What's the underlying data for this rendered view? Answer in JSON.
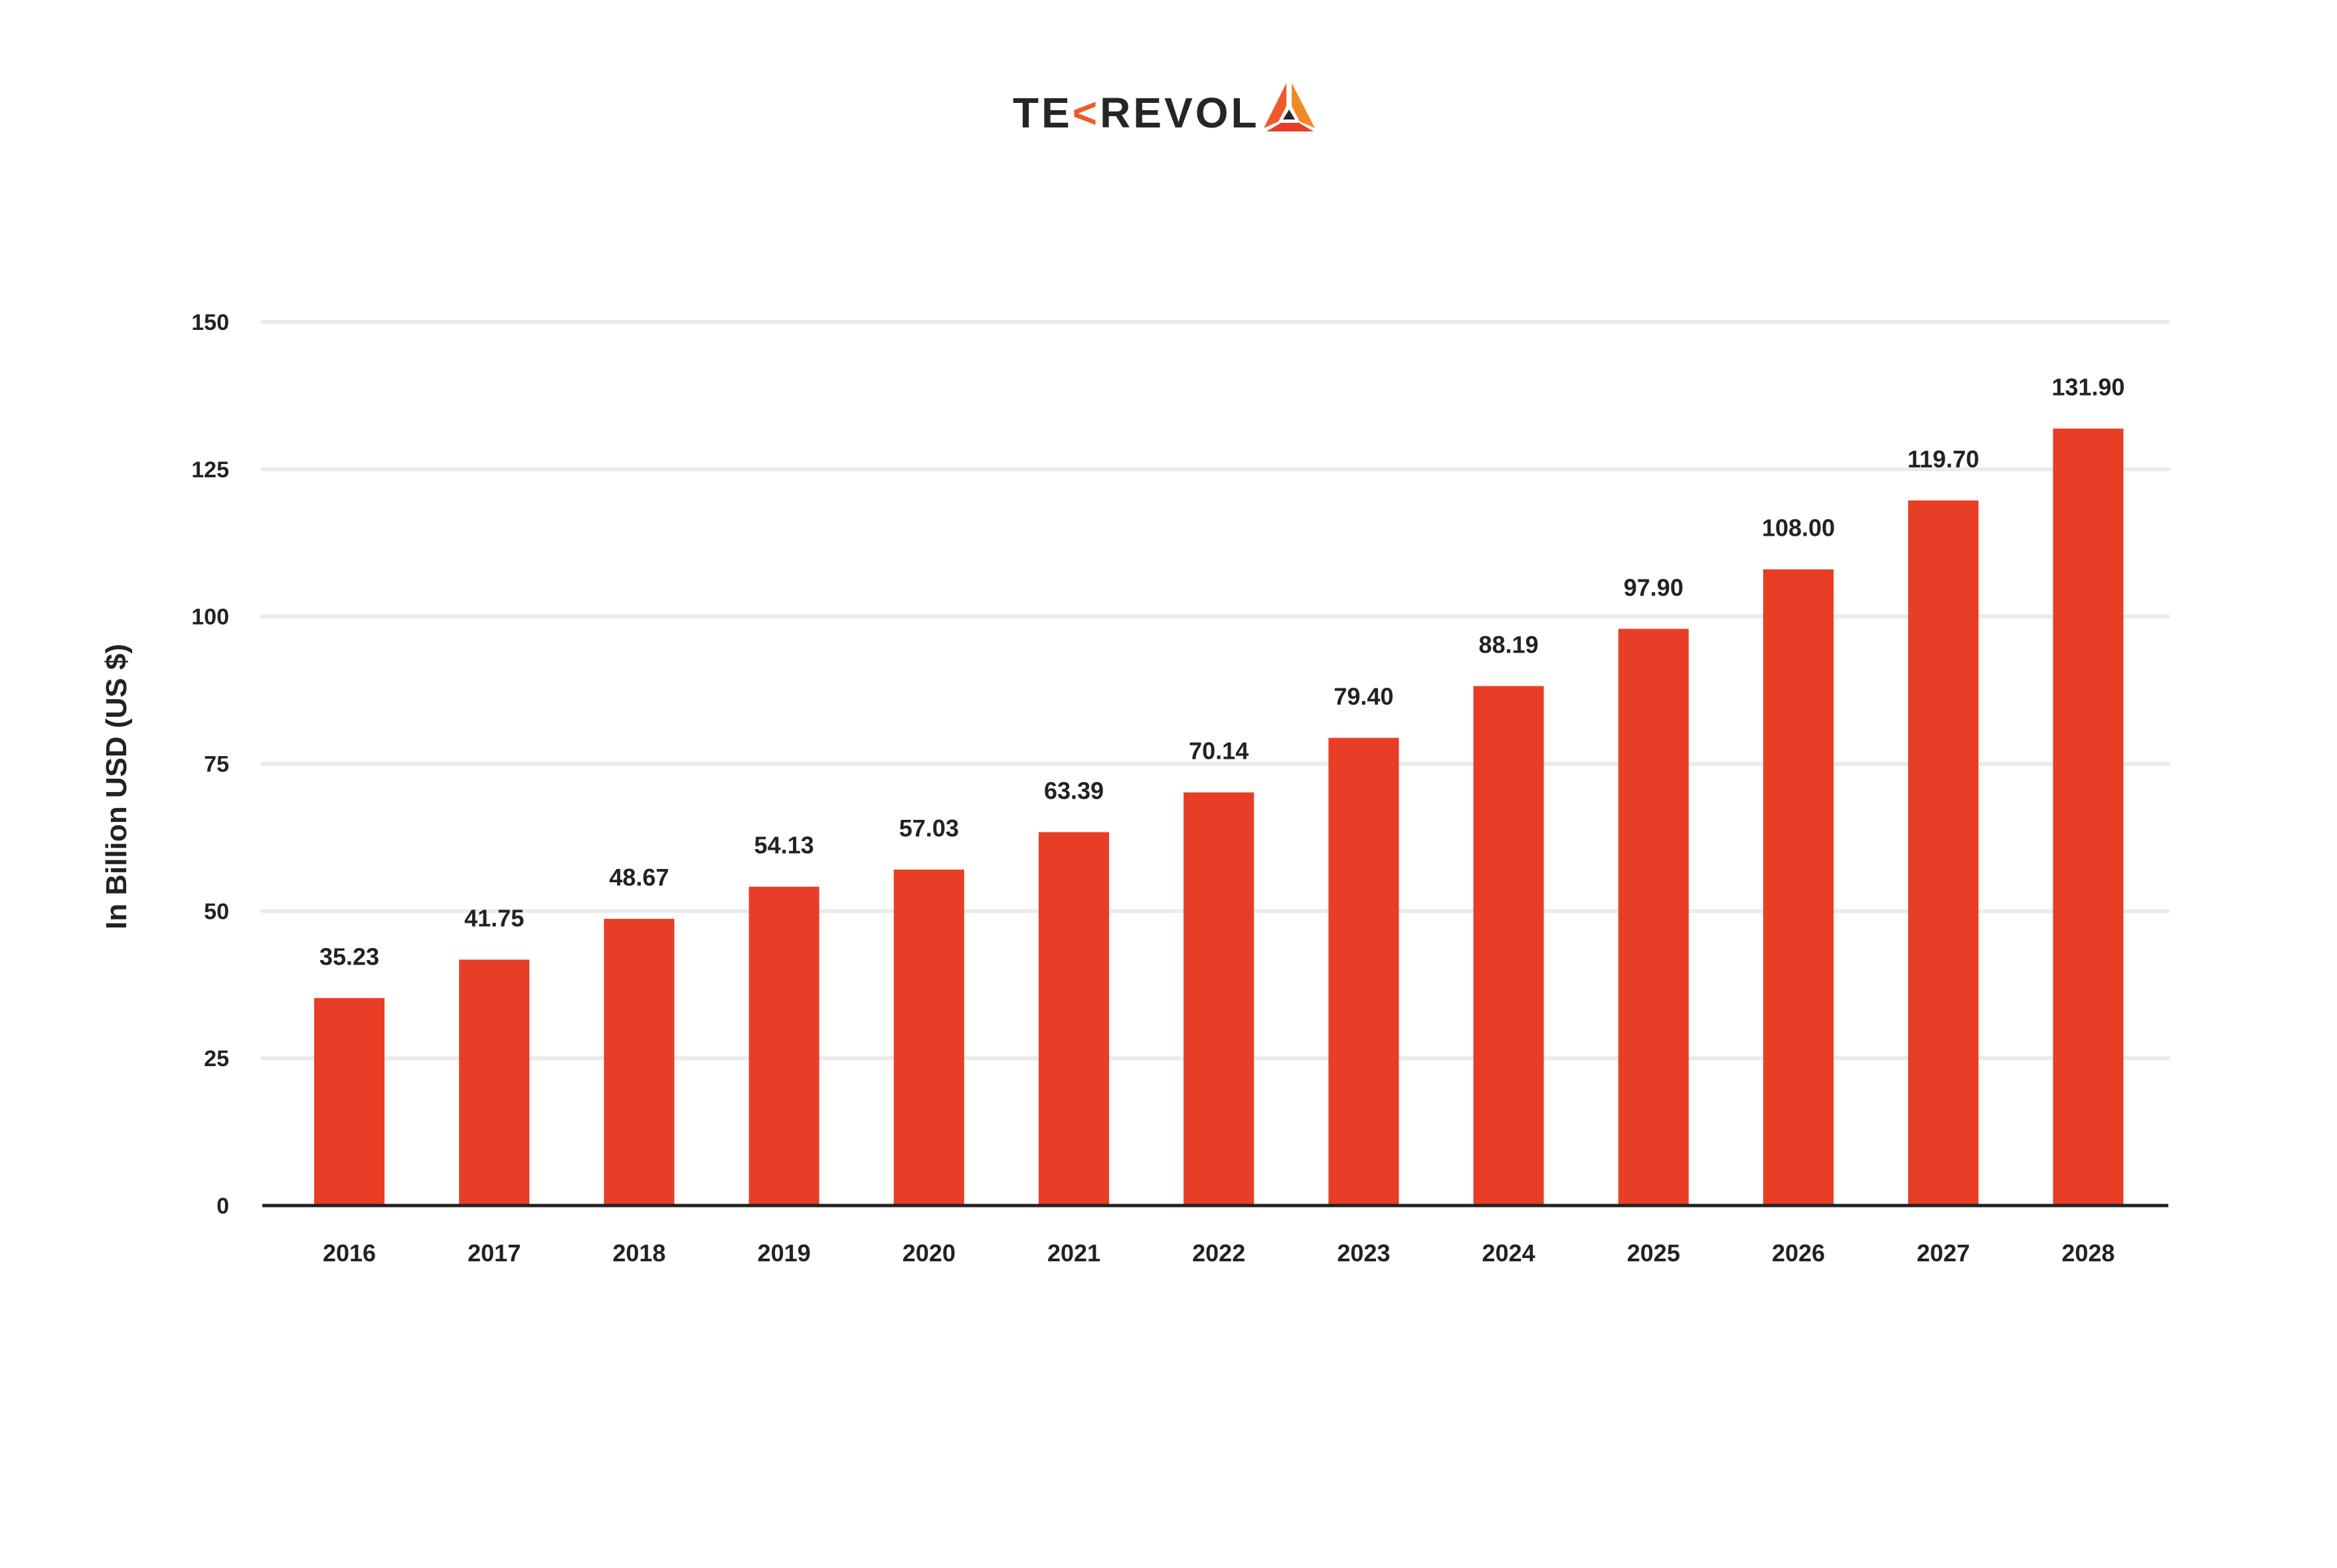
{
  "logo": {
    "text": "TEKREVOL",
    "colors": [
      "#262626",
      "#F05A28",
      "#F08A28",
      "#E83E26"
    ]
  },
  "chart_data": {
    "type": "bar",
    "title": "",
    "xlabel": "",
    "ylabel": "In Billion USD (US $)",
    "categories": [
      "2016",
      "2017",
      "2018",
      "2019",
      "2020",
      "2021",
      "2022",
      "2023",
      "2024",
      "2025",
      "2026",
      "2027",
      "2028"
    ],
    "values": [
      35.23,
      41.75,
      48.67,
      54.13,
      57.03,
      63.39,
      70.14,
      79.4,
      88.19,
      97.9,
      108.0,
      119.7,
      131.9
    ],
    "value_labels": [
      "35.23",
      "41.75",
      "48.67",
      "54.13",
      "57.03",
      "63.39",
      "70.14",
      "79.40",
      "88.19",
      "97.90",
      "108.00",
      "119.70",
      "131.90"
    ],
    "ylim": [
      0,
      150
    ],
    "yticks": [
      0,
      25,
      50,
      75,
      100,
      125,
      150
    ],
    "grid": true,
    "bar_color": "#E83E26"
  }
}
